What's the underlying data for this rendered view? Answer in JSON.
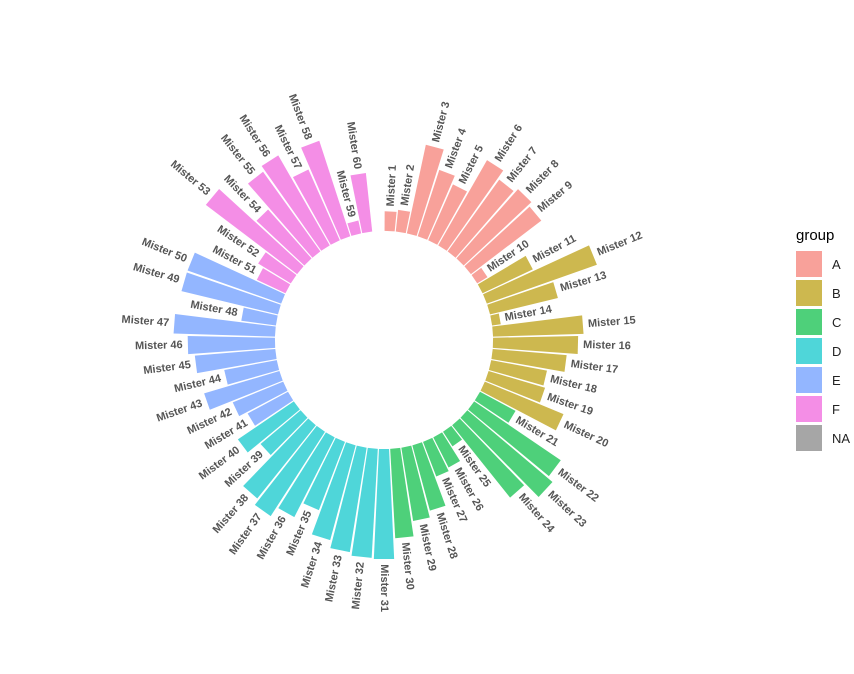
{
  "chart_data": {
    "type": "bar",
    "polar": true,
    "title": "",
    "xlabel": "",
    "ylabel": "",
    "ylim": [
      -100,
      120
    ],
    "empty_slots": 1,
    "categories": [
      "Mister 1",
      "Mister 2",
      "Mister 3",
      "Mister 4",
      "Mister 5",
      "Mister 6",
      "Mister 7",
      "Mister 8",
      "Mister 9",
      "Mister 10",
      "Mister 11",
      "Mister 12",
      "Mister 13",
      "Mister 14",
      "Mister 15",
      "Mister 16",
      "Mister 17",
      "Mister 18",
      "Mister 19",
      "Mister 20",
      "Mister 21",
      "Mister 22",
      "Mister 23",
      "Mister 24",
      "Mister 25",
      "Mister 26",
      "Mister 27",
      "Mister 28",
      "Mister 29",
      "Mister 30",
      "Mister 31",
      "Mister 32",
      "Mister 33",
      "Mister 34",
      "Mister 35",
      "Mister 36",
      "Mister 37",
      "Mister 38",
      "Mister 39",
      "Mister 40",
      "Mister 41",
      "Mister 42",
      "Mister 43",
      "Mister 44",
      "Mister 45",
      "Mister 46",
      "Mister 47",
      "Mister 48",
      "Mister 49",
      "Mister 50",
      "Mister 51",
      "Mister 52",
      "Mister 53",
      "Mister 54",
      "Mister 55",
      "Mister 56",
      "Mister 57",
      "Mister 58",
      "Mister 59",
      "Mister 60"
    ],
    "values": [
      18,
      20,
      83,
      64,
      56,
      90,
      81,
      85,
      81,
      11,
      51,
      107,
      64,
      8,
      83,
      78,
      68,
      52,
      54,
      78,
      37,
      96,
      102,
      85,
      16,
      31,
      34,
      62,
      68,
      82,
      101,
      100,
      97,
      90,
      67,
      82,
      92,
      86,
      48,
      62,
      42,
      50,
      72,
      49,
      74,
      80,
      93,
      32,
      91,
      91,
      29,
      35,
      105,
      60,
      90,
      95,
      71,
      92,
      12,
      54
    ],
    "groups": [
      "A",
      "A",
      "A",
      "A",
      "A",
      "A",
      "A",
      "A",
      "A",
      "A",
      "B",
      "B",
      "B",
      "B",
      "B",
      "B",
      "B",
      "B",
      "B",
      "B",
      "C",
      "C",
      "C",
      "C",
      "C",
      "C",
      "C",
      "C",
      "C",
      "C",
      "D",
      "D",
      "D",
      "D",
      "D",
      "D",
      "D",
      "D",
      "D",
      "D",
      "E",
      "E",
      "E",
      "E",
      "E",
      "E",
      "E",
      "E",
      "E",
      "E",
      "F",
      "F",
      "F",
      "F",
      "F",
      "F",
      "F",
      "F",
      "F",
      "F"
    ],
    "legend": {
      "title": "group",
      "position": "right",
      "entries": [
        {
          "label": "A",
          "color": "#F8A19A"
        },
        {
          "label": "B",
          "color": "#CDB84F"
        },
        {
          "label": "C",
          "color": "#4ED07A"
        },
        {
          "label": "D",
          "color": "#4FD6D9"
        },
        {
          "label": "E",
          "color": "#93B6FF"
        },
        {
          "label": "F",
          "color": "#F48EE6"
        },
        {
          "label": "NA",
          "color": "#A6A6A6"
        }
      ]
    }
  }
}
